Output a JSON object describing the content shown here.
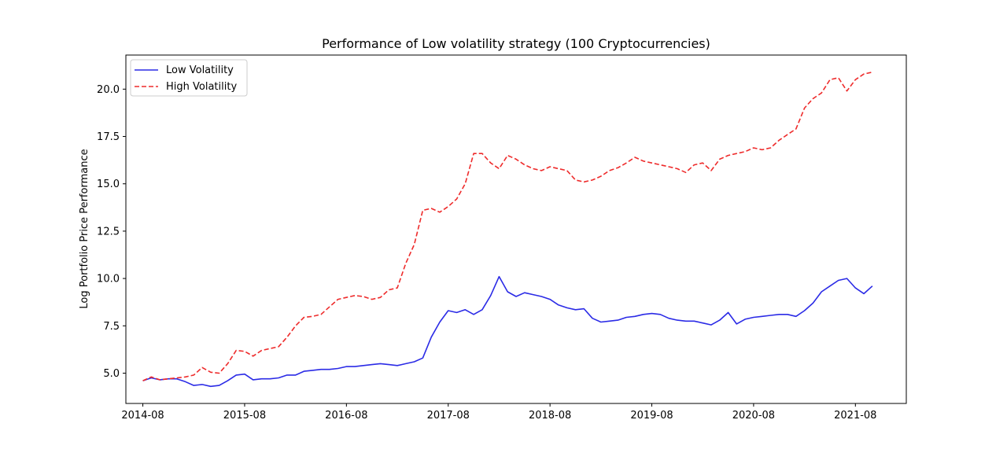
{
  "chart_data": {
    "type": "line",
    "title": "Performance of Low volatility strategy (100 Cryptocurrencies)",
    "xlabel": "",
    "ylabel": "Log Portfolio Price Performance",
    "x_ticks": [
      "2014-08",
      "2015-08",
      "2016-08",
      "2017-08",
      "2018-08",
      "2019-08",
      "2020-08",
      "2021-08"
    ],
    "y_ticks": [
      "5.0",
      "7.5",
      "10.0",
      "12.5",
      "15.0",
      "17.5",
      "20.0"
    ],
    "xlim": [
      "2014-06",
      "2022-02"
    ],
    "ylim": [
      3.4,
      21.8
    ],
    "grid": false,
    "legend_position": "upper left",
    "x": [
      "2014-08",
      "2014-09",
      "2014-10",
      "2014-11",
      "2014-12",
      "2015-01",
      "2015-02",
      "2015-03",
      "2015-04",
      "2015-05",
      "2015-06",
      "2015-07",
      "2015-08",
      "2015-09",
      "2015-10",
      "2015-11",
      "2015-12",
      "2016-01",
      "2016-02",
      "2016-03",
      "2016-04",
      "2016-05",
      "2016-06",
      "2016-07",
      "2016-08",
      "2016-09",
      "2016-10",
      "2016-11",
      "2016-12",
      "2017-01",
      "2017-02",
      "2017-03",
      "2017-04",
      "2017-05",
      "2017-06",
      "2017-07",
      "2017-08",
      "2017-09",
      "2017-10",
      "2017-11",
      "2017-12",
      "2018-01",
      "2018-02",
      "2018-03",
      "2018-04",
      "2018-05",
      "2018-06",
      "2018-07",
      "2018-08",
      "2018-09",
      "2018-10",
      "2018-11",
      "2018-12",
      "2019-01",
      "2019-02",
      "2019-03",
      "2019-04",
      "2019-05",
      "2019-06",
      "2019-07",
      "2019-08",
      "2019-09",
      "2019-10",
      "2019-11",
      "2019-12",
      "2020-01",
      "2020-02",
      "2020-03",
      "2020-04",
      "2020-05",
      "2020-06",
      "2020-07",
      "2020-08",
      "2020-09",
      "2020-10",
      "2020-11",
      "2020-12",
      "2021-01",
      "2021-02",
      "2021-03",
      "2021-04",
      "2021-05",
      "2021-06",
      "2021-07",
      "2021-08",
      "2021-09",
      "2021-10"
    ],
    "series": [
      {
        "name": "Low Volatility",
        "color": "#2b2be6",
        "style": "solid",
        "values": [
          4.6,
          4.75,
          4.65,
          4.7,
          4.7,
          4.55,
          4.35,
          4.4,
          4.3,
          4.35,
          4.6,
          4.9,
          4.95,
          4.65,
          4.7,
          4.7,
          4.75,
          4.9,
          4.9,
          5.1,
          5.15,
          5.2,
          5.2,
          5.25,
          5.35,
          5.35,
          5.4,
          5.45,
          5.5,
          5.45,
          5.4,
          5.5,
          5.6,
          5.8,
          6.9,
          7.7,
          8.3,
          8.2,
          8.35,
          8.1,
          8.35,
          9.1,
          10.1,
          9.3,
          9.05,
          9.25,
          9.15,
          9.05,
          8.9,
          8.6,
          8.45,
          8.35,
          8.4,
          7.9,
          7.7,
          7.75,
          7.8,
          7.95,
          8.0,
          8.1,
          8.15,
          8.1,
          7.9,
          7.8,
          7.75,
          7.75,
          7.65,
          7.55,
          7.8,
          8.2,
          7.6,
          7.85,
          7.95,
          8.0,
          8.05,
          8.1,
          8.1,
          8.0,
          8.3,
          8.7,
          9.3,
          9.6,
          9.9,
          10.0,
          9.5,
          9.2,
          9.6
        ]
      },
      {
        "name": "High Volatility",
        "color": "#ee2b2b",
        "style": "dashed",
        "values": [
          4.6,
          4.8,
          4.65,
          4.7,
          4.75,
          4.8,
          4.9,
          5.3,
          5.05,
          5.0,
          5.5,
          6.2,
          6.15,
          5.9,
          6.2,
          6.3,
          6.4,
          6.9,
          7.5,
          7.95,
          8.0,
          8.1,
          8.5,
          8.9,
          9.0,
          9.1,
          9.05,
          8.9,
          9.0,
          9.4,
          9.5,
          10.8,
          11.8,
          13.6,
          13.7,
          13.5,
          13.8,
          14.2,
          15.0,
          16.6,
          16.6,
          16.1,
          15.8,
          16.5,
          16.3,
          16.0,
          15.8,
          15.7,
          15.9,
          15.8,
          15.7,
          15.2,
          15.1,
          15.2,
          15.4,
          15.7,
          15.85,
          16.1,
          16.4,
          16.2,
          16.1,
          16.0,
          15.9,
          15.8,
          15.6,
          16.0,
          16.1,
          15.7,
          16.3,
          16.5,
          16.6,
          16.7,
          16.9,
          16.8,
          16.9,
          17.3,
          17.6,
          17.9,
          19.0,
          19.5,
          19.8,
          20.5,
          20.6,
          19.9,
          20.5,
          20.8,
          20.9
        ]
      }
    ]
  }
}
